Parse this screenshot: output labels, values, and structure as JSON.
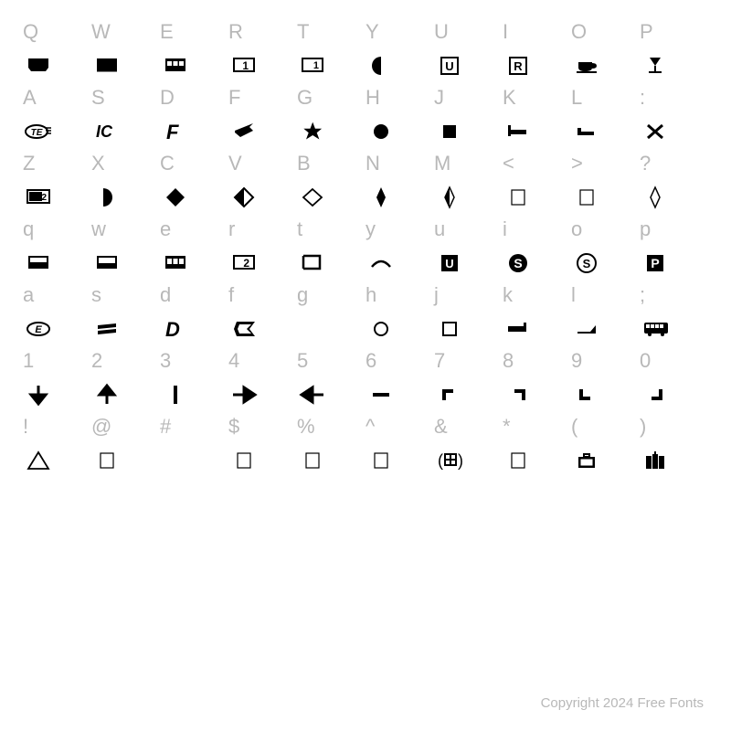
{
  "footer": "Copyright 2024 Free Fonts",
  "glyph_color": "#000000",
  "label_color": "#b8b8b8",
  "rows": [
    {
      "keys": [
        "Q",
        "W",
        "E",
        "R",
        "T",
        "Y",
        "U",
        "I",
        "O",
        "P"
      ],
      "glyphs": [
        "train-top",
        "train-mid",
        "tram",
        "dest-1",
        "dest-1b",
        "half-moon",
        "u-box",
        "r-box",
        "coffee",
        "wine"
      ]
    },
    {
      "keys": [
        "A",
        "S",
        "D",
        "F",
        "G",
        "H",
        "J",
        "K",
        "L",
        ":"
      ],
      "glyphs": [
        "te-logo",
        "ic-logo",
        "f-italic",
        "ec-logo",
        "star6",
        "circle-solid",
        "square-solid",
        "bed",
        "corner-bl",
        "times"
      ]
    },
    {
      "keys": [
        "Z",
        "X",
        "C",
        "V",
        "B",
        "N",
        "M",
        "<",
        ">",
        "?"
      ],
      "glyphs": [
        "dest-2",
        "half-right",
        "diamond-solid",
        "diamond-half",
        "diamond-outline",
        "diamond-tall",
        "diamond-tall-half",
        "box-outline",
        "box-outline",
        "diamond-tall-outline"
      ]
    },
    {
      "keys": [
        "q",
        "w",
        "e",
        "r",
        "t",
        "y",
        "u",
        "i",
        "o",
        "p"
      ],
      "glyphs": [
        "train-top-b",
        "train-mid-b",
        "tram-b",
        "dest-2b",
        "open-right",
        "arc",
        "u-box-inv",
        "s-circle",
        "s-circle-o",
        "p-box"
      ]
    },
    {
      "keys": [
        "a",
        "s",
        "d",
        "f",
        "g",
        "h",
        "j",
        "k",
        "l",
        ";"
      ],
      "glyphs": [
        "e-logo",
        "equals-italic",
        "d-italic",
        "c-italic",
        "blank",
        "circle-outline",
        "square-outline",
        "bed-flat",
        "ramp",
        "bus"
      ]
    },
    {
      "keys": [
        "1",
        "2",
        "3",
        "4",
        "5",
        "6",
        "7",
        "8",
        "9",
        "0"
      ],
      "glyphs": [
        "arrow-down",
        "arrow-up",
        "bar-v",
        "arrow-right",
        "arrow-left",
        "minus",
        "corner-tl",
        "corner-tr",
        "corner-bl2",
        "corner-br"
      ]
    },
    {
      "keys": [
        "!",
        "@",
        "#",
        "$",
        "%",
        "^",
        "&",
        "*",
        "(",
        ")"
      ],
      "glyphs": [
        "triangle-outline",
        "box-outline",
        "blank",
        "box-outline",
        "box-outline",
        "box-outline",
        "grid-paren",
        "box-outline",
        "briefcase",
        "luggage"
      ]
    }
  ]
}
